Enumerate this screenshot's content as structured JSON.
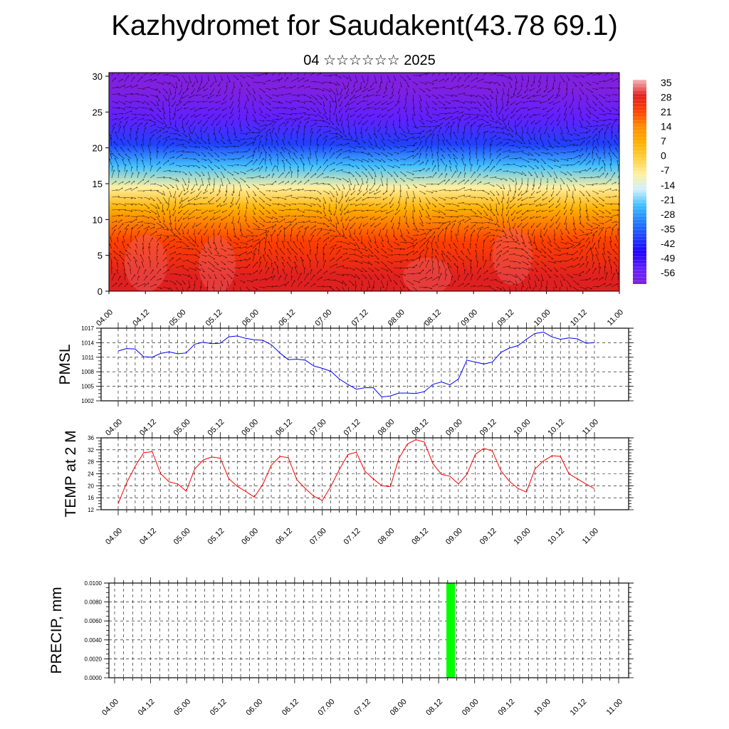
{
  "header": {
    "title": "Kazhydromet for Saudakent(43.78 69.1)",
    "subtitle": "04 ☆☆☆☆☆☆ 2025"
  },
  "colors": {
    "pmsl_line": "#0000ff",
    "temp_line": "#ff0000",
    "precip_bar": "#00ff00",
    "grid": "#000000"
  },
  "chart_data": [
    {
      "type": "heatmap",
      "title": "",
      "xlabel": "",
      "ylabel": "",
      "x_tick_labels": [
        "04.00",
        "04.12",
        "05.00",
        "05.12",
        "06.00",
        "06.12",
        "07.00",
        "07.12",
        "08.00",
        "08.12",
        "09.00",
        "09.12",
        "10.00",
        "10.12",
        "11.00"
      ],
      "y_ticks": [
        0,
        5,
        10,
        15,
        20,
        25,
        30
      ],
      "ylim": [
        0,
        30.5
      ],
      "colorbar": {
        "labels": [
          "35",
          "28",
          "21",
          "14",
          "7",
          "0",
          "-7",
          "-14",
          "-21",
          "-28",
          "-35",
          "-42",
          "-49",
          "-56"
        ],
        "stops": [
          "#f4b6b6",
          "#e02020",
          "#ff4000",
          "#ff8c00",
          "#ffb000",
          "#ffd040",
          "#fff0a0",
          "#d0f0ff",
          "#40c0ff",
          "#2080ff",
          "#2040ff",
          "#2000ff",
          "#6020ff",
          "#8020e0"
        ]
      },
      "overlay": "wind vectors",
      "layers": [
        {
          "from": 0,
          "to": 4,
          "value": 28
        },
        {
          "from": 4,
          "to": 10,
          "value": 21
        },
        {
          "from": 10,
          "to": 13,
          "value": 10
        },
        {
          "from": 13,
          "to": 16,
          "value": -5
        },
        {
          "from": 16,
          "to": 19,
          "value": -20
        },
        {
          "from": 19,
          "to": 22,
          "value": -38
        },
        {
          "from": 22,
          "to": 26,
          "value": -52
        },
        {
          "from": 26,
          "to": 30.5,
          "value": -58
        }
      ]
    },
    {
      "type": "line",
      "ylabel": "PMSL",
      "x_tick_labels": [
        "04.00",
        "04.12",
        "05.00",
        "05.12",
        "06.00",
        "06.12",
        "07.00",
        "07.12",
        "08.00",
        "08.12",
        "09.00",
        "09.12",
        "10.00",
        "10.12",
        "11.00"
      ],
      "ylim": [
        1002,
        1017
      ],
      "y_ticks": [
        "1002",
        "1005",
        "1008",
        "1011",
        "1014",
        "1017"
      ],
      "grid": true,
      "series": [
        {
          "values": [
            1012.3,
            1012.8,
            1012.7,
            1011.1,
            1011.0,
            1011.8,
            1012.1,
            1011.7,
            1011.9,
            1013.7,
            1014.1,
            1013.8,
            1013.9,
            1015.2,
            1015.4,
            1014.9,
            1014.6,
            1014.5,
            1013.6,
            1011.9,
            1010.5,
            1010.6,
            1010.4,
            1009.2,
            1008.7,
            1008.1,
            1006.5,
            1005.4,
            1004.4,
            1004.7,
            1004.7,
            1002.8,
            1003.0,
            1003.6,
            1003.6,
            1003.5,
            1003.9,
            1005.4,
            1005.9,
            1005.3,
            1006.5,
            1010.4,
            1010.0,
            1009.6,
            1010.0,
            1012.0,
            1012.9,
            1013.4,
            1014.7,
            1015.9,
            1016.2,
            1015.2,
            1014.7,
            1015.0,
            1014.8,
            1013.9,
            1014.0
          ]
        }
      ]
    },
    {
      "type": "line",
      "ylabel": "TEMP at 2 M",
      "x_tick_labels": [
        "04.00",
        "04.12",
        "05.00",
        "05.12",
        "06.00",
        "06.12",
        "07.00",
        "07.12",
        "08.00",
        "08.12",
        "09.00",
        "09.12",
        "10.00",
        "10.12",
        "11.00"
      ],
      "ylim": [
        12,
        36
      ],
      "y_ticks": [
        "12",
        "16",
        "20",
        "24",
        "28",
        "32",
        "36"
      ],
      "grid": true,
      "series": [
        {
          "values": [
            14,
            21,
            26.5,
            31,
            31.4,
            24,
            21.3,
            20.6,
            18.2,
            25.6,
            28.6,
            29.6,
            29.2,
            22.4,
            19.8,
            18.1,
            16.2,
            20.4,
            26.8,
            29.8,
            29.4,
            22,
            19.1,
            16.5,
            15.1,
            19.8,
            25.4,
            30.4,
            31.2,
            24.9,
            22.3,
            20,
            19.7,
            29.1,
            33.9,
            35.4,
            34.6,
            27.4,
            23.8,
            23.2,
            20.6,
            23.8,
            30.5,
            32.5,
            31.6,
            25,
            21.5,
            19.1,
            17.9,
            25.6,
            28.3,
            30,
            29.8,
            24,
            22.3,
            20.6,
            19
          ]
        }
      ]
    },
    {
      "type": "bar",
      "ylabel": "PRECIP, mm",
      "x_tick_labels": [
        "04.00",
        "04.12",
        "05.00",
        "05.12",
        "06.00",
        "06.12",
        "07.00",
        "07.12",
        "08.00",
        "08.12",
        "09.00",
        "09.12",
        "10.00",
        "10.12",
        "11.00"
      ],
      "ylim": [
        0,
        0.01
      ],
      "y_ticks": [
        "0.0000",
        "0.0020",
        "0.0040",
        "0.0060",
        "0.0080",
        "0.0100"
      ],
      "grid": true,
      "bars": [
        {
          "x": 9.333,
          "value": 0.01
        }
      ]
    }
  ]
}
